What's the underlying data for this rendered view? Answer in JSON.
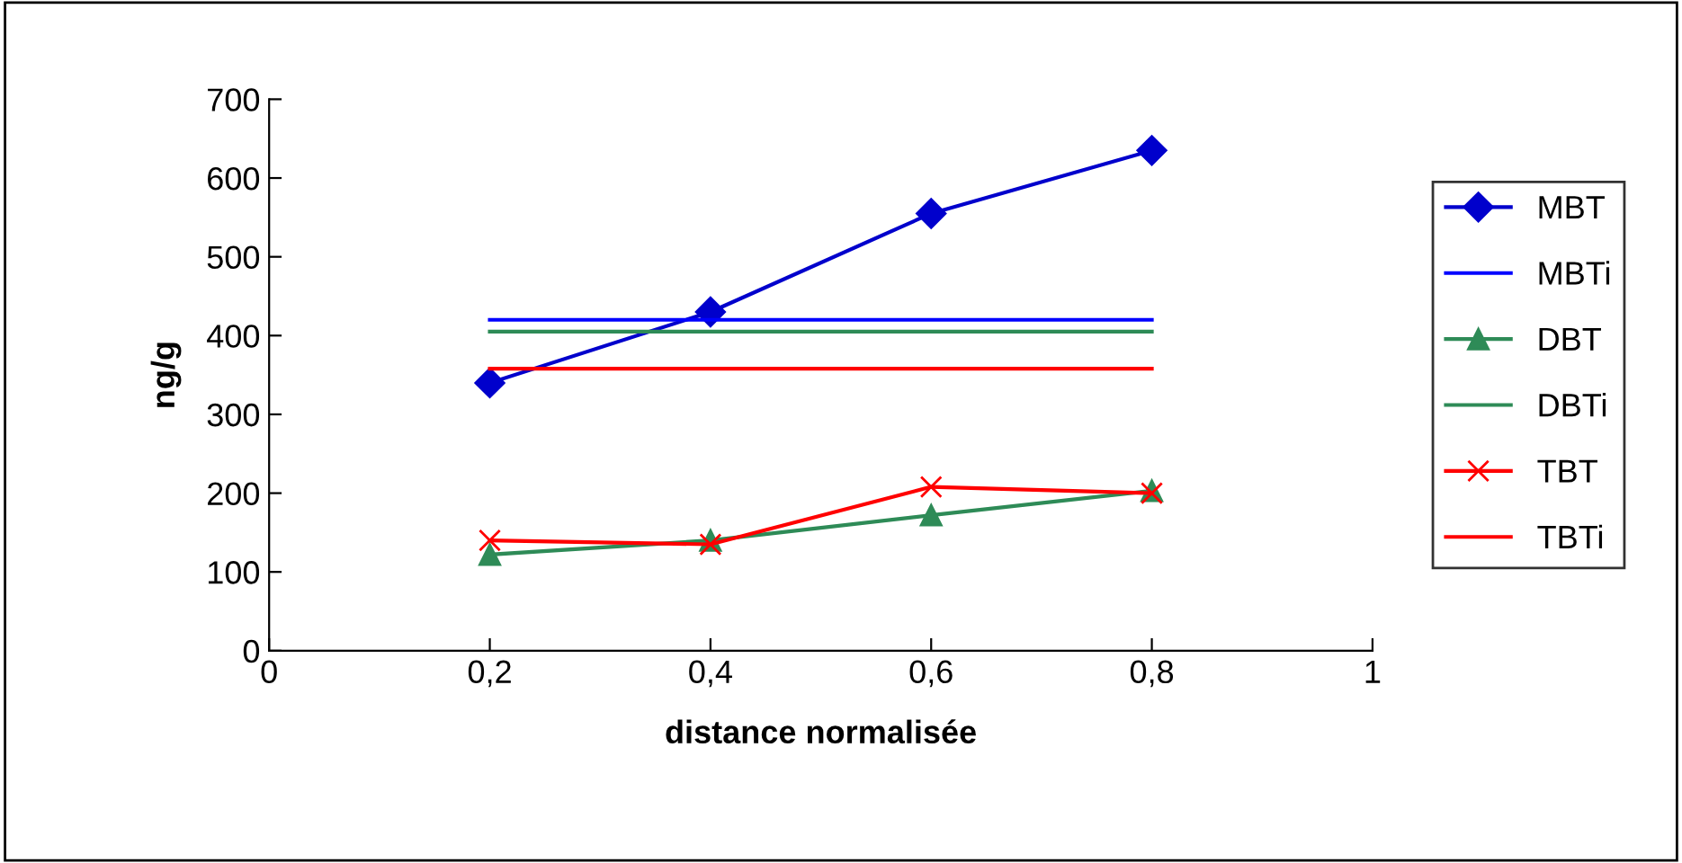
{
  "chart_data": {
    "type": "line",
    "xlabel": "distance normalisée",
    "ylabel": "ng/g",
    "xlim": [
      0,
      1
    ],
    "xticks": [
      0,
      {
        "value": 0.2,
        "label": "0,2"
      },
      {
        "value": 0.4,
        "label": "0,4"
      },
      {
        "value": 0.6,
        "label": "0,6"
      },
      {
        "value": 0.8,
        "label": "0,8"
      },
      1
    ],
    "ylim": [
      0,
      700
    ],
    "yticks": [
      0,
      100,
      200,
      300,
      400,
      500,
      600,
      700
    ],
    "legend": "right",
    "grid": false,
    "series": [
      {
        "name": "MBT",
        "color": "#0000cc",
        "marker": "diamond",
        "x": [
          0.2,
          0.4,
          0.6,
          0.8
        ],
        "values": [
          340,
          430,
          555,
          635
        ]
      },
      {
        "name": "MBTi",
        "color": "#0000ff",
        "marker": "none",
        "x": [
          0.2,
          0.8
        ],
        "values": [
          420,
          420
        ]
      },
      {
        "name": "DBT",
        "color": "#2e8b57",
        "marker": "triangle",
        "x": [
          0.2,
          0.4,
          0.6,
          0.8
        ],
        "values": [
          122,
          140,
          172,
          203
        ]
      },
      {
        "name": "DBTi",
        "color": "#2e8b57",
        "marker": "none",
        "x": [
          0.2,
          0.8
        ],
        "values": [
          405,
          405
        ]
      },
      {
        "name": "TBT",
        "color": "#ff0000",
        "marker": "cross",
        "x": [
          0.2,
          0.4,
          0.6,
          0.8
        ],
        "values": [
          140,
          135,
          208,
          200
        ]
      },
      {
        "name": "TBTi",
        "color": "#ff0000",
        "marker": "none",
        "x": [
          0.2,
          0.8
        ],
        "values": [
          358,
          358
        ]
      }
    ]
  }
}
